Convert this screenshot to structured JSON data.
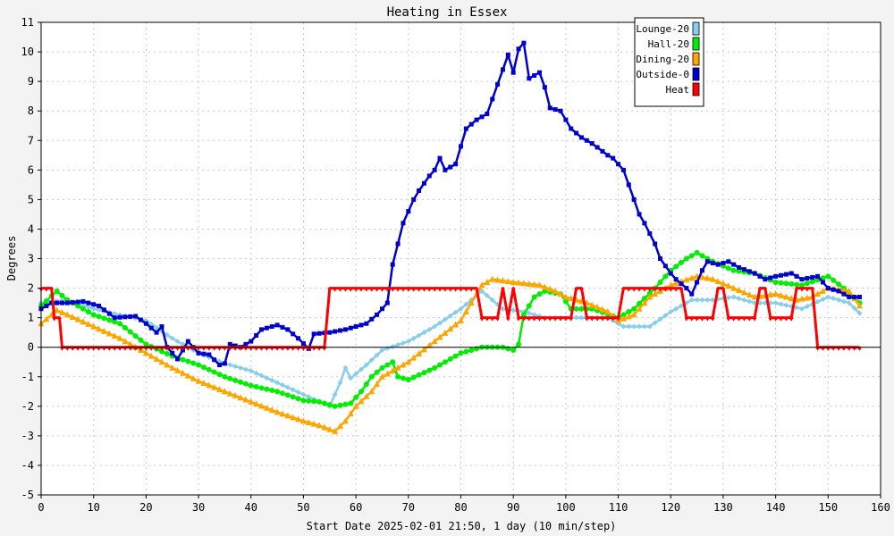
{
  "chart_data": {
    "type": "line",
    "title": "Heating in Essex",
    "xlabel": "Start Date 2025-02-01 21:50, 1 day (10 min/step)",
    "ylabel": "Degrees",
    "xlim": [
      0,
      160
    ],
    "ylim": [
      -5,
      11
    ],
    "xticks": [
      0,
      10,
      20,
      30,
      40,
      50,
      60,
      70,
      80,
      90,
      100,
      110,
      120,
      130,
      140,
      150,
      160
    ],
    "yticks": [
      -5,
      -4,
      -3,
      -2,
      -1,
      0,
      1,
      2,
      3,
      4,
      5,
      6,
      7,
      8,
      9,
      10,
      11
    ],
    "grid": true,
    "legend_position": "top-right",
    "series": [
      {
        "name": "Lounge-20",
        "color": "#87ceeb",
        "marker": "diamond",
        "points": [
          [
            0,
            1.5
          ],
          [
            5,
            1.6
          ],
          [
            10,
            1.3
          ],
          [
            15,
            1.1
          ],
          [
            20,
            0.9
          ],
          [
            25,
            0.3
          ],
          [
            30,
            -0.2
          ],
          [
            35,
            -0.55
          ],
          [
            40,
            -0.8
          ],
          [
            45,
            -1.2
          ],
          [
            50,
            -1.6
          ],
          [
            55,
            -2.0
          ],
          [
            57,
            -1.2
          ],
          [
            58,
            -0.7
          ],
          [
            59,
            -1.05
          ],
          [
            60,
            -0.9
          ],
          [
            62,
            -0.6
          ],
          [
            65,
            -0.1
          ],
          [
            70,
            0.2
          ],
          [
            75,
            0.7
          ],
          [
            80,
            1.3
          ],
          [
            84,
            1.9
          ],
          [
            88,
            1.3
          ],
          [
            92,
            1.2
          ],
          [
            96,
            1.0
          ],
          [
            100,
            1.0
          ],
          [
            104,
            1.0
          ],
          [
            108,
            1.0
          ],
          [
            111,
            0.7
          ],
          [
            116,
            0.7
          ],
          [
            120,
            1.2
          ],
          [
            124,
            1.6
          ],
          [
            128,
            1.6
          ],
          [
            132,
            1.7
          ],
          [
            136,
            1.5
          ],
          [
            140,
            1.5
          ],
          [
            145,
            1.3
          ],
          [
            150,
            1.7
          ],
          [
            154,
            1.5
          ],
          [
            156,
            1.15
          ]
        ]
      },
      {
        "name": "Hall-20",
        "color": "#00ee00",
        "marker": "circle",
        "points": [
          [
            0,
            1.4
          ],
          [
            3,
            1.9
          ],
          [
            5,
            1.6
          ],
          [
            10,
            1.1
          ],
          [
            15,
            0.8
          ],
          [
            20,
            0.1
          ],
          [
            25,
            -0.3
          ],
          [
            30,
            -0.6
          ],
          [
            35,
            -1.0
          ],
          [
            40,
            -1.3
          ],
          [
            45,
            -1.5
          ],
          [
            50,
            -1.8
          ],
          [
            53,
            -1.85
          ],
          [
            56,
            -2.0
          ],
          [
            59,
            -1.9
          ],
          [
            61,
            -1.5
          ],
          [
            63,
            -1.0
          ],
          [
            65,
            -0.7
          ],
          [
            67,
            -0.5
          ],
          [
            68,
            -1.0
          ],
          [
            70,
            -1.1
          ],
          [
            75,
            -0.7
          ],
          [
            80,
            -0.2
          ],
          [
            84,
            0.0
          ],
          [
            88,
            0.0
          ],
          [
            90,
            -0.1
          ],
          [
            91,
            0.1
          ],
          [
            92,
            1.1
          ],
          [
            94,
            1.7
          ],
          [
            96,
            1.9
          ],
          [
            99,
            1.8
          ],
          [
            101,
            1.3
          ],
          [
            105,
            1.3
          ],
          [
            110,
            1.0
          ],
          [
            113,
            1.3
          ],
          [
            117,
            2.0
          ],
          [
            120,
            2.6
          ],
          [
            123,
            3.0
          ],
          [
            125,
            3.2
          ],
          [
            128,
            2.9
          ],
          [
            132,
            2.6
          ],
          [
            136,
            2.5
          ],
          [
            140,
            2.2
          ],
          [
            145,
            2.1
          ],
          [
            150,
            2.4
          ],
          [
            153,
            2.0
          ],
          [
            156,
            1.5
          ]
        ]
      },
      {
        "name": "Dining-20",
        "color": "#ffa500",
        "marker": "triangle",
        "points": [
          [
            0,
            0.8
          ],
          [
            3,
            1.25
          ],
          [
            5,
            1.1
          ],
          [
            10,
            0.7
          ],
          [
            15,
            0.3
          ],
          [
            20,
            -0.2
          ],
          [
            25,
            -0.7
          ],
          [
            30,
            -1.15
          ],
          [
            35,
            -1.5
          ],
          [
            40,
            -1.85
          ],
          [
            45,
            -2.2
          ],
          [
            50,
            -2.5
          ],
          [
            53,
            -2.65
          ],
          [
            56,
            -2.85
          ],
          [
            58,
            -2.5
          ],
          [
            60,
            -2.0
          ],
          [
            63,
            -1.5
          ],
          [
            65,
            -1.0
          ],
          [
            70,
            -0.5
          ],
          [
            75,
            0.2
          ],
          [
            80,
            0.9
          ],
          [
            82,
            1.5
          ],
          [
            84,
            2.1
          ],
          [
            86,
            2.3
          ],
          [
            90,
            2.2
          ],
          [
            95,
            2.1
          ],
          [
            98,
            1.9
          ],
          [
            100,
            1.7
          ],
          [
            104,
            1.5
          ],
          [
            108,
            1.2
          ],
          [
            110,
            0.9
          ],
          [
            113,
            1.1
          ],
          [
            116,
            1.7
          ],
          [
            120,
            2.1
          ],
          [
            125,
            2.4
          ],
          [
            128,
            2.3
          ],
          [
            132,
            2.0
          ],
          [
            136,
            1.7
          ],
          [
            140,
            1.8
          ],
          [
            144,
            1.6
          ],
          [
            147,
            1.7
          ],
          [
            150,
            2.0
          ],
          [
            154,
            1.9
          ],
          [
            156,
            1.4
          ]
        ]
      },
      {
        "name": "Outside-0",
        "color": "#0000cd",
        "marker": "square",
        "points": [
          [
            0,
            1.3
          ],
          [
            2,
            1.5
          ],
          [
            5,
            1.5
          ],
          [
            8,
            1.55
          ],
          [
            11,
            1.4
          ],
          [
            14,
            1.0
          ],
          [
            18,
            1.05
          ],
          [
            20,
            0.8
          ],
          [
            22,
            0.5
          ],
          [
            23,
            0.7
          ],
          [
            24,
            0.0
          ],
          [
            26,
            -0.4
          ],
          [
            28,
            0.2
          ],
          [
            30,
            -0.2
          ],
          [
            32,
            -0.25
          ],
          [
            34,
            -0.6
          ],
          [
            35,
            -0.55
          ],
          [
            36,
            0.1
          ],
          [
            38,
            0.0
          ],
          [
            40,
            0.2
          ],
          [
            42,
            0.6
          ],
          [
            45,
            0.75
          ],
          [
            47,
            0.6
          ],
          [
            49,
            0.3
          ],
          [
            51,
            -0.05
          ],
          [
            52,
            0.45
          ],
          [
            55,
            0.5
          ],
          [
            58,
            0.6
          ],
          [
            62,
            0.8
          ],
          [
            64,
            1.1
          ],
          [
            66,
            1.5
          ],
          [
            67,
            2.8
          ],
          [
            68,
            3.5
          ],
          [
            69,
            4.2
          ],
          [
            71,
            5.0
          ],
          [
            72,
            5.3
          ],
          [
            74,
            5.8
          ],
          [
            75,
            6.0
          ],
          [
            76,
            6.4
          ],
          [
            77,
            6.0
          ],
          [
            79,
            6.2
          ],
          [
            80,
            6.8
          ],
          [
            81,
            7.4
          ],
          [
            83,
            7.7
          ],
          [
            85,
            7.9
          ],
          [
            86,
            8.4
          ],
          [
            87,
            8.9
          ],
          [
            88,
            9.4
          ],
          [
            89,
            9.9
          ],
          [
            90,
            9.3
          ],
          [
            91,
            10.1
          ],
          [
            92,
            10.3
          ],
          [
            93,
            9.1
          ],
          [
            95,
            9.3
          ],
          [
            96,
            8.8
          ],
          [
            97,
            8.1
          ],
          [
            99,
            8.0
          ],
          [
            101,
            7.4
          ],
          [
            103,
            7.1
          ],
          [
            105,
            6.9
          ],
          [
            108,
            6.5
          ],
          [
            109,
            6.4
          ],
          [
            111,
            6.0
          ],
          [
            112,
            5.5
          ],
          [
            113,
            5.0
          ],
          [
            114,
            4.5
          ],
          [
            115,
            4.2
          ],
          [
            117,
            3.5
          ],
          [
            118,
            3.0
          ],
          [
            120,
            2.5
          ],
          [
            121,
            2.3
          ],
          [
            123,
            2.0
          ],
          [
            124,
            1.8
          ],
          [
            126,
            2.6
          ],
          [
            127,
            2.9
          ],
          [
            129,
            2.8
          ],
          [
            131,
            2.9
          ],
          [
            133,
            2.7
          ],
          [
            136,
            2.5
          ],
          [
            138,
            2.3
          ],
          [
            140,
            2.4
          ],
          [
            143,
            2.5
          ],
          [
            145,
            2.3
          ],
          [
            148,
            2.4
          ],
          [
            150,
            2.0
          ],
          [
            152,
            1.9
          ],
          [
            154,
            1.7
          ],
          [
            156,
            1.7
          ]
        ]
      },
      {
        "name": "Heat",
        "color": "#ff0000",
        "marker": "tick",
        "points": [
          [
            0,
            2
          ],
          [
            2,
            2
          ],
          [
            2.5,
            1
          ],
          [
            3.5,
            1
          ],
          [
            4,
            0
          ],
          [
            54,
            0
          ],
          [
            55,
            2
          ],
          [
            83,
            2
          ],
          [
            84,
            1
          ],
          [
            87,
            1
          ],
          [
            88,
            2
          ],
          [
            89,
            1
          ],
          [
            90,
            2
          ],
          [
            91,
            1
          ],
          [
            101,
            1
          ],
          [
            102,
            2
          ],
          [
            103,
            2
          ],
          [
            104,
            1
          ],
          [
            110,
            1
          ],
          [
            111,
            2
          ],
          [
            122,
            2
          ],
          [
            123,
            1
          ],
          [
            128,
            1
          ],
          [
            129,
            2
          ],
          [
            130,
            2
          ],
          [
            131,
            1
          ],
          [
            136,
            1
          ],
          [
            137,
            2
          ],
          [
            138,
            2
          ],
          [
            139,
            1
          ],
          [
            143,
            1
          ],
          [
            144,
            2
          ],
          [
            147,
            2
          ],
          [
            148,
            0
          ],
          [
            156,
            0
          ]
        ]
      }
    ]
  }
}
